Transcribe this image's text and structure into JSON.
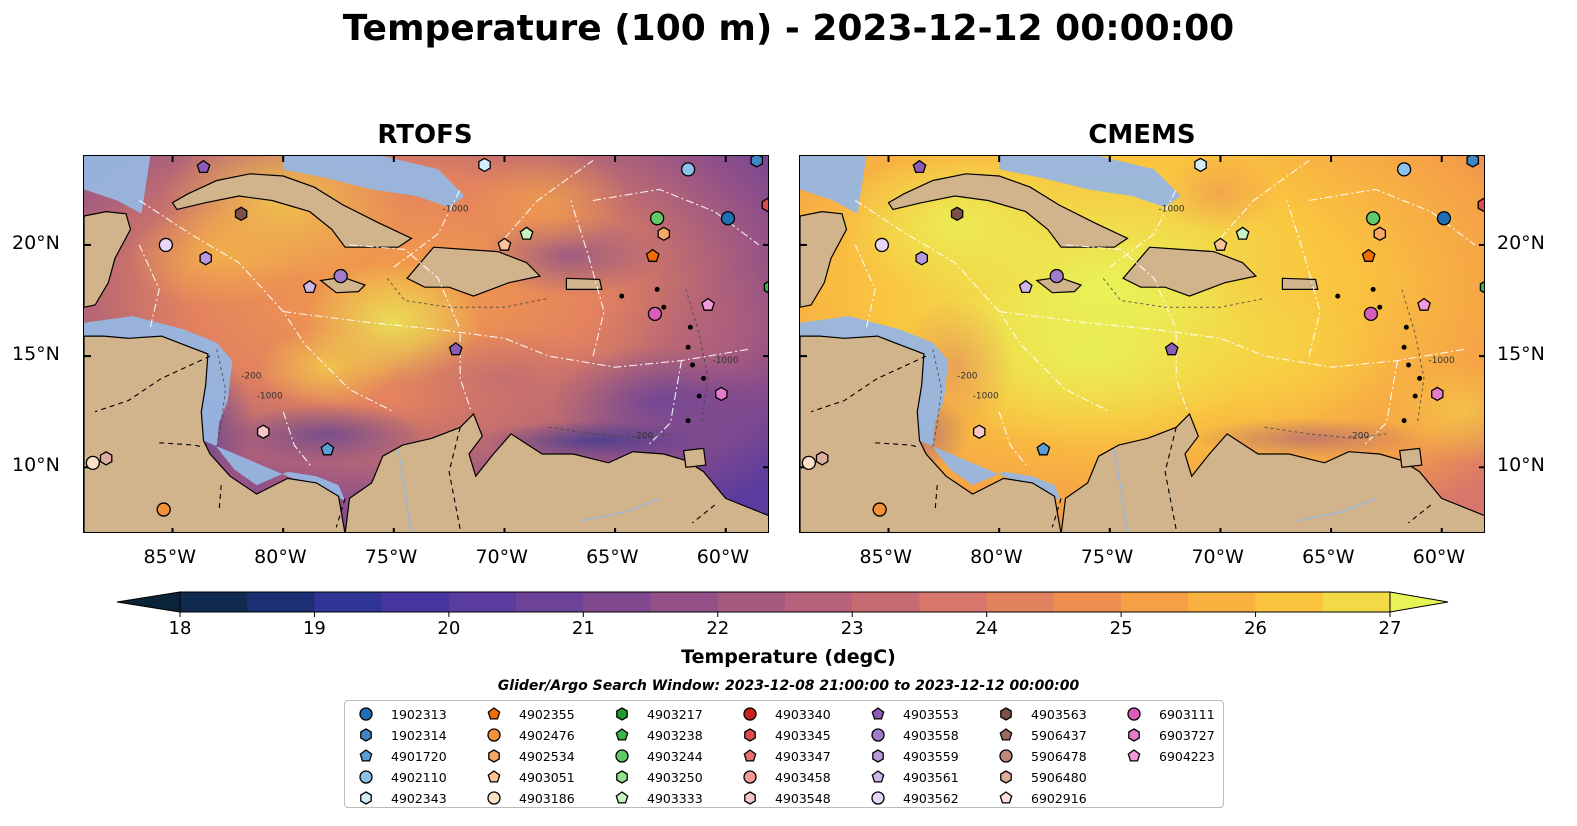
{
  "figure": {
    "title": "Temperature (100 m) - 2023-12-12 00:00:00"
  },
  "panels": [
    {
      "title": "RTOFS"
    },
    {
      "title": "CMEMS"
    }
  ],
  "axes": {
    "lat_ticks": [
      {
        "value": 20,
        "label": "20°N"
      },
      {
        "value": 15,
        "label": "15°N"
      },
      {
        "value": 10,
        "label": "10°N"
      }
    ],
    "lon_ticks": [
      {
        "value": -85,
        "label": "85°W"
      },
      {
        "value": -80,
        "label": "80°W"
      },
      {
        "value": -75,
        "label": "75°W"
      },
      {
        "value": -70,
        "label": "70°W"
      },
      {
        "value": -65,
        "label": "65°W"
      },
      {
        "value": -60,
        "label": "60°W"
      }
    ],
    "lon_range": [
      -89,
      -58
    ],
    "lat_range": [
      7,
      24
    ]
  },
  "colorbar": {
    "label": "Temperature (degC)",
    "ticks": [
      "18",
      "19",
      "20",
      "21",
      "22",
      "23",
      "24",
      "25",
      "26",
      "27"
    ],
    "range": [
      18,
      27
    ],
    "extend": "both",
    "colors": [
      "#0b2338",
      "#112a50",
      "#1d2f74",
      "#2f3495",
      "#45379f",
      "#5a3c9e",
      "#6d4299",
      "#80498f",
      "#935187",
      "#a55a80",
      "#b7617a",
      "#c76b73",
      "#d7766b",
      "#e3825f",
      "#ee8f52",
      "#f59f47",
      "#f9b23f",
      "#fac43f",
      "#f4d946",
      "#e8f357"
    ]
  },
  "observations": {
    "window_title": "Glider/Argo Search Window: 2023-12-08 21:00:00 to 2023-12-12 00:00:00",
    "legend": [
      {
        "id": "1902313",
        "marker": "circle",
        "color": "#1f6fb4"
      },
      {
        "id": "1902314",
        "marker": "hexagon",
        "color": "#3e86c4"
      },
      {
        "id": "4901720",
        "marker": "pentagon",
        "color": "#5b9ed6"
      },
      {
        "id": "4902110",
        "marker": "circle",
        "color": "#8cc1ea"
      },
      {
        "id": "4902343",
        "marker": "hexagon",
        "color": "#d4ecfa"
      },
      {
        "id": "4902355",
        "marker": "pentagon",
        "color": "#f06d00"
      },
      {
        "id": "4902476",
        "marker": "circle",
        "color": "#f5903a"
      },
      {
        "id": "4902534",
        "marker": "hexagon",
        "color": "#f8a865"
      },
      {
        "id": "4903051",
        "marker": "pentagon",
        "color": "#fbc59a"
      },
      {
        "id": "4903186",
        "marker": "circle",
        "color": "#fde1c6"
      },
      {
        "id": "4903217",
        "marker": "hexagon",
        "color": "#1f9a2f"
      },
      {
        "id": "4903238",
        "marker": "pentagon",
        "color": "#3ab34a"
      },
      {
        "id": "4903244",
        "marker": "circle",
        "color": "#62c86a"
      },
      {
        "id": "4903250",
        "marker": "hexagon",
        "color": "#95df91"
      },
      {
        "id": "4903333",
        "marker": "pentagon",
        "color": "#c8f2c2"
      },
      {
        "id": "4903340",
        "marker": "circle",
        "color": "#c8201f"
      },
      {
        "id": "4903345",
        "marker": "hexagon",
        "color": "#dd4b4b"
      },
      {
        "id": "4903347",
        "marker": "pentagon",
        "color": "#e86f6f"
      },
      {
        "id": "4903458",
        "marker": "circle",
        "color": "#f29a9a"
      },
      {
        "id": "4903548",
        "marker": "hexagon",
        "color": "#f8c6c4"
      },
      {
        "id": "4903553",
        "marker": "pentagon",
        "color": "#8c5bb5"
      },
      {
        "id": "4903558",
        "marker": "circle",
        "color": "#a27ccc"
      },
      {
        "id": "4903559",
        "marker": "hexagon",
        "color": "#b898dc"
      },
      {
        "id": "4903561",
        "marker": "pentagon",
        "color": "#cfb6ea"
      },
      {
        "id": "4903562",
        "marker": "circle",
        "color": "#e8d8f7"
      },
      {
        "id": "4903563",
        "marker": "hexagon",
        "color": "#7d5148"
      },
      {
        "id": "5906437",
        "marker": "pentagon",
        "color": "#9c6a5e"
      },
      {
        "id": "5906478",
        "marker": "circle",
        "color": "#c0897b"
      },
      {
        "id": "5906480",
        "marker": "hexagon",
        "color": "#dfae9f"
      },
      {
        "id": "6902916",
        "marker": "pentagon",
        "color": "#fbe0d4"
      },
      {
        "id": "6903111",
        "marker": "circle",
        "color": "#d85cba"
      },
      {
        "id": "6903727",
        "marker": "hexagon",
        "color": "#e57ccb"
      },
      {
        "id": "6904223",
        "marker": "pentagon",
        "color": "#f19bdc"
      }
    ],
    "markers": [
      {
        "lon": -85.3,
        "lat": 20.0,
        "marker": "circle",
        "color": "#e8d8f7"
      },
      {
        "lon": -83.5,
        "lat": 19.4,
        "marker": "hexagon",
        "color": "#b898dc"
      },
      {
        "lon": -83.6,
        "lat": 23.5,
        "marker": "pentagon",
        "color": "#8c5bb5"
      },
      {
        "lon": -81.9,
        "lat": 21.4,
        "marker": "hexagon",
        "color": "#7d5148"
      },
      {
        "lon": -78.8,
        "lat": 18.1,
        "marker": "pentagon",
        "color": "#cfb6ea"
      },
      {
        "lon": -77.4,
        "lat": 18.6,
        "marker": "circle",
        "color": "#a27ccc"
      },
      {
        "lon": -72.2,
        "lat": 15.3,
        "marker": "pentagon",
        "color": "#8c5bb5"
      },
      {
        "lon": -78.0,
        "lat": 10.8,
        "marker": "pentagon",
        "color": "#5b9ed6"
      },
      {
        "lon": -85.4,
        "lat": 8.1,
        "marker": "circle",
        "color": "#f5903a"
      },
      {
        "lon": -88.6,
        "lat": 10.2,
        "marker": "circle",
        "color": "#fde1c6"
      },
      {
        "lon": -88.0,
        "lat": 10.4,
        "marker": "hexagon",
        "color": "#dfae9f"
      },
      {
        "lon": -70.9,
        "lat": 23.6,
        "marker": "hexagon",
        "color": "#d4ecfa"
      },
      {
        "lon": -70.0,
        "lat": 20.0,
        "marker": "pentagon",
        "color": "#fbc59a"
      },
      {
        "lon": -69.0,
        "lat": 20.5,
        "marker": "pentagon",
        "color": "#c8f2c2"
      },
      {
        "lon": -63.1,
        "lat": 21.2,
        "marker": "circle",
        "color": "#62c86a"
      },
      {
        "lon": -62.8,
        "lat": 20.5,
        "marker": "hexagon",
        "color": "#f8a865"
      },
      {
        "lon": -63.3,
        "lat": 19.5,
        "marker": "pentagon",
        "color": "#f06d00"
      },
      {
        "lon": -61.7,
        "lat": 23.4,
        "marker": "circle",
        "color": "#8cc1ea"
      },
      {
        "lon": -59.9,
        "lat": 21.2,
        "marker": "circle",
        "color": "#1f6fb4"
      },
      {
        "lon": -58.6,
        "lat": 23.8,
        "marker": "hexagon",
        "color": "#3e86c4"
      },
      {
        "lon": -58.1,
        "lat": 21.8,
        "marker": "hexagon",
        "color": "#dd4b4b"
      },
      {
        "lon": -60.8,
        "lat": 17.3,
        "marker": "pentagon",
        "color": "#f19bdc"
      },
      {
        "lon": -63.2,
        "lat": 16.9,
        "marker": "circle",
        "color": "#d85cba"
      },
      {
        "lon": -60.2,
        "lat": 13.3,
        "marker": "hexagon",
        "color": "#e57ccb"
      },
      {
        "lon": -58.0,
        "lat": 18.1,
        "marker": "hexagon",
        "color": "#3ab34a"
      },
      {
        "lon": -80.9,
        "lat": 11.6,
        "marker": "hexagon",
        "color": "#f8c6c4"
      }
    ]
  },
  "contour_labels": [
    "-200",
    "-1000",
    "-1000",
    "-200",
    "-1000"
  ]
}
